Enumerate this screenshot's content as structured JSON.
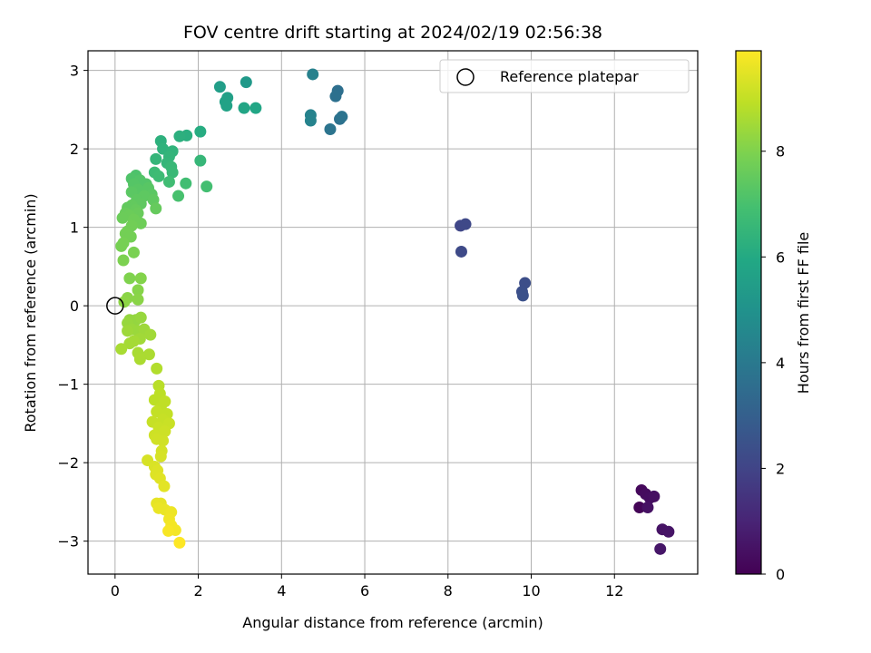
{
  "chart_data": {
    "type": "scatter",
    "title": "FOV centre drift starting at 2024/02/19 02:56:38",
    "xlabel": "Angular distance from reference (arcmin)",
    "ylabel": "Rotation from reference (arcmin)",
    "xlim": [
      -0.65,
      14.0
    ],
    "ylim": [
      -3.42,
      3.25
    ],
    "xticks": [
      0,
      2,
      4,
      6,
      8,
      10,
      12
    ],
    "yticks": [
      -3,
      -2,
      -1,
      0,
      1,
      2,
      3
    ],
    "grid": true,
    "legend": {
      "placement": "upper-right",
      "entries": [
        {
          "label": "Reference platepar",
          "marker": "open-circle",
          "x": 0,
          "y": 0
        }
      ]
    },
    "colorbar": {
      "label": "Hours from first FF file",
      "colormap": "viridis",
      "range": [
        0,
        9.9
      ],
      "ticks": [
        0,
        2,
        4,
        6,
        8
      ]
    },
    "points": [
      {
        "x": 12.6,
        "y": -2.57,
        "t": 0.1
      },
      {
        "x": 12.65,
        "y": -2.35,
        "t": 0.2
      },
      {
        "x": 12.75,
        "y": -2.4,
        "t": 0.3
      },
      {
        "x": 12.85,
        "y": -2.45,
        "t": 0.35
      },
      {
        "x": 12.95,
        "y": -2.43,
        "t": 0.4
      },
      {
        "x": 12.8,
        "y": -2.57,
        "t": 0.45
      },
      {
        "x": 13.15,
        "y": -2.85,
        "t": 0.5
      },
      {
        "x": 13.3,
        "y": -2.88,
        "t": 0.55
      },
      {
        "x": 13.1,
        "y": -3.1,
        "t": 0.6
      },
      {
        "x": 8.3,
        "y": 1.02,
        "t": 2.1
      },
      {
        "x": 8.42,
        "y": 1.04,
        "t": 2.15
      },
      {
        "x": 8.32,
        "y": 0.69,
        "t": 2.2
      },
      {
        "x": 9.85,
        "y": 0.29,
        "t": 2.35
      },
      {
        "x": 9.78,
        "y": 0.18,
        "t": 2.4
      },
      {
        "x": 9.8,
        "y": 0.13,
        "t": 2.45
      },
      {
        "x": 5.35,
        "y": 2.74,
        "t": 3.6
      },
      {
        "x": 5.3,
        "y": 2.67,
        "t": 3.65
      },
      {
        "x": 5.4,
        "y": 2.38,
        "t": 3.7
      },
      {
        "x": 5.45,
        "y": 2.41,
        "t": 3.75
      },
      {
        "x": 5.17,
        "y": 2.25,
        "t": 3.8
      },
      {
        "x": 4.75,
        "y": 2.95,
        "t": 4.3
      },
      {
        "x": 4.7,
        "y": 2.43,
        "t": 4.35
      },
      {
        "x": 4.7,
        "y": 2.36,
        "t": 4.4
      },
      {
        "x": 3.15,
        "y": 2.85,
        "t": 5.3
      },
      {
        "x": 2.52,
        "y": 2.79,
        "t": 5.5
      },
      {
        "x": 2.7,
        "y": 2.65,
        "t": 5.6
      },
      {
        "x": 2.65,
        "y": 2.6,
        "t": 5.65
      },
      {
        "x": 2.68,
        "y": 2.55,
        "t": 5.7
      },
      {
        "x": 3.1,
        "y": 2.52,
        "t": 5.8
      },
      {
        "x": 3.38,
        "y": 2.52,
        "t": 5.85
      },
      {
        "x": 2.05,
        "y": 2.22,
        "t": 6.1
      },
      {
        "x": 1.72,
        "y": 2.17,
        "t": 6.2
      },
      {
        "x": 1.55,
        "y": 2.16,
        "t": 6.25
      },
      {
        "x": 1.1,
        "y": 2.1,
        "t": 6.3
      },
      {
        "x": 1.15,
        "y": 2.0,
        "t": 6.35
      },
      {
        "x": 1.38,
        "y": 1.97,
        "t": 6.4
      },
      {
        "x": 1.3,
        "y": 1.9,
        "t": 6.45
      },
      {
        "x": 1.25,
        "y": 1.82,
        "t": 6.5
      },
      {
        "x": 0.98,
        "y": 1.87,
        "t": 6.5
      },
      {
        "x": 2.05,
        "y": 1.85,
        "t": 6.55
      },
      {
        "x": 1.35,
        "y": 1.77,
        "t": 6.6
      },
      {
        "x": 1.38,
        "y": 1.7,
        "t": 6.65
      },
      {
        "x": 0.95,
        "y": 1.7,
        "t": 6.7
      },
      {
        "x": 1.05,
        "y": 1.65,
        "t": 6.75
      },
      {
        "x": 1.3,
        "y": 1.58,
        "t": 6.8
      },
      {
        "x": 1.7,
        "y": 1.56,
        "t": 6.85
      },
      {
        "x": 2.2,
        "y": 1.52,
        "t": 6.9
      },
      {
        "x": 1.52,
        "y": 1.4,
        "t": 7.0
      },
      {
        "x": 0.5,
        "y": 1.66,
        "t": 7.1
      },
      {
        "x": 0.4,
        "y": 1.62,
        "t": 7.15
      },
      {
        "x": 0.6,
        "y": 1.6,
        "t": 7.2
      },
      {
        "x": 0.75,
        "y": 1.55,
        "t": 7.2
      },
      {
        "x": 0.45,
        "y": 1.55,
        "t": 7.25
      },
      {
        "x": 0.8,
        "y": 1.5,
        "t": 7.3
      },
      {
        "x": 0.55,
        "y": 1.48,
        "t": 7.3
      },
      {
        "x": 0.4,
        "y": 1.45,
        "t": 7.35
      },
      {
        "x": 0.88,
        "y": 1.42,
        "t": 7.35
      },
      {
        "x": 0.7,
        "y": 1.4,
        "t": 7.4
      },
      {
        "x": 0.52,
        "y": 1.35,
        "t": 7.4
      },
      {
        "x": 0.92,
        "y": 1.35,
        "t": 7.45
      },
      {
        "x": 0.62,
        "y": 1.3,
        "t": 7.45
      },
      {
        "x": 0.4,
        "y": 1.28,
        "t": 7.5
      },
      {
        "x": 0.3,
        "y": 1.25,
        "t": 7.5
      },
      {
        "x": 0.5,
        "y": 1.22,
        "t": 7.55
      },
      {
        "x": 0.98,
        "y": 1.24,
        "t": 7.55
      },
      {
        "x": 0.55,
        "y": 1.18,
        "t": 7.6
      },
      {
        "x": 0.25,
        "y": 1.18,
        "t": 7.6
      },
      {
        "x": 0.35,
        "y": 1.15,
        "t": 7.65
      },
      {
        "x": 0.18,
        "y": 1.12,
        "t": 7.65
      },
      {
        "x": 0.45,
        "y": 1.1,
        "t": 7.7
      },
      {
        "x": 0.62,
        "y": 1.05,
        "t": 7.7
      },
      {
        "x": 0.4,
        "y": 1.02,
        "t": 7.75
      },
      {
        "x": 0.3,
        "y": 0.95,
        "t": 7.75
      },
      {
        "x": 0.25,
        "y": 0.92,
        "t": 7.8
      },
      {
        "x": 0.38,
        "y": 0.88,
        "t": 7.8
      },
      {
        "x": 0.2,
        "y": 0.8,
        "t": 7.85
      },
      {
        "x": 0.15,
        "y": 0.76,
        "t": 7.85
      },
      {
        "x": 0.45,
        "y": 0.68,
        "t": 7.9
      },
      {
        "x": 0.2,
        "y": 0.58,
        "t": 7.95
      },
      {
        "x": 0.35,
        "y": 0.35,
        "t": 8.0
      },
      {
        "x": 0.62,
        "y": 0.35,
        "t": 8.05
      },
      {
        "x": 0.55,
        "y": 0.2,
        "t": 8.1
      },
      {
        "x": 0.3,
        "y": 0.1,
        "t": 8.15
      },
      {
        "x": 0.55,
        "y": 0.08,
        "t": 8.15
      },
      {
        "x": 0.22,
        "y": 0.05,
        "t": 8.2
      },
      {
        "x": 0.35,
        "y": -0.18,
        "t": 8.3
      },
      {
        "x": 0.5,
        "y": -0.18,
        "t": 8.3
      },
      {
        "x": 0.62,
        "y": -0.15,
        "t": 8.35
      },
      {
        "x": 0.3,
        "y": -0.22,
        "t": 8.35
      },
      {
        "x": 0.4,
        "y": -0.3,
        "t": 8.4
      },
      {
        "x": 0.55,
        "y": -0.32,
        "t": 8.4
      },
      {
        "x": 0.7,
        "y": -0.3,
        "t": 8.45
      },
      {
        "x": 0.3,
        "y": -0.32,
        "t": 8.45
      },
      {
        "x": 0.85,
        "y": -0.37,
        "t": 8.5
      },
      {
        "x": 0.6,
        "y": -0.42,
        "t": 8.5
      },
      {
        "x": 0.45,
        "y": -0.45,
        "t": 8.55
      },
      {
        "x": 0.35,
        "y": -0.48,
        "t": 8.55
      },
      {
        "x": 0.15,
        "y": -0.55,
        "t": 8.6
      },
      {
        "x": 0.55,
        "y": -0.6,
        "t": 8.6
      },
      {
        "x": 0.82,
        "y": -0.62,
        "t": 8.65
      },
      {
        "x": 0.6,
        "y": -0.68,
        "t": 8.65
      },
      {
        "x": 1.0,
        "y": -0.8,
        "t": 8.75
      },
      {
        "x": 1.05,
        "y": -1.02,
        "t": 8.85
      },
      {
        "x": 1.08,
        "y": -1.12,
        "t": 8.9
      },
      {
        "x": 0.95,
        "y": -1.2,
        "t": 8.9
      },
      {
        "x": 1.2,
        "y": -1.22,
        "t": 8.95
      },
      {
        "x": 1.1,
        "y": -1.3,
        "t": 8.95
      },
      {
        "x": 1.0,
        "y": -1.35,
        "t": 9.0
      },
      {
        "x": 1.25,
        "y": -1.38,
        "t": 9.0
      },
      {
        "x": 1.15,
        "y": -1.45,
        "t": 9.05
      },
      {
        "x": 0.9,
        "y": -1.48,
        "t": 9.05
      },
      {
        "x": 1.3,
        "y": -1.5,
        "t": 9.1
      },
      {
        "x": 1.05,
        "y": -1.55,
        "t": 9.1
      },
      {
        "x": 1.2,
        "y": -1.6,
        "t": 9.15
      },
      {
        "x": 0.95,
        "y": -1.65,
        "t": 9.15
      },
      {
        "x": 1.0,
        "y": -1.7,
        "t": 9.2
      },
      {
        "x": 1.15,
        "y": -1.72,
        "t": 9.2
      },
      {
        "x": 1.12,
        "y": -1.85,
        "t": 9.25
      },
      {
        "x": 1.1,
        "y": -1.92,
        "t": 9.3
      },
      {
        "x": 0.78,
        "y": -1.97,
        "t": 9.3
      },
      {
        "x": 0.95,
        "y": -2.05,
        "t": 9.35
      },
      {
        "x": 1.02,
        "y": -2.1,
        "t": 9.4
      },
      {
        "x": 0.98,
        "y": -2.15,
        "t": 9.4
      },
      {
        "x": 1.08,
        "y": -2.2,
        "t": 9.45
      },
      {
        "x": 1.18,
        "y": -2.3,
        "t": 9.5
      },
      {
        "x": 1.0,
        "y": -2.52,
        "t": 9.55
      },
      {
        "x": 1.1,
        "y": -2.52,
        "t": 9.55
      },
      {
        "x": 1.05,
        "y": -2.58,
        "t": 9.6
      },
      {
        "x": 1.2,
        "y": -2.6,
        "t": 9.6
      },
      {
        "x": 1.35,
        "y": -2.63,
        "t": 9.65
      },
      {
        "x": 1.3,
        "y": -2.72,
        "t": 9.7
      },
      {
        "x": 1.35,
        "y": -2.8,
        "t": 9.75
      },
      {
        "x": 1.45,
        "y": -2.86,
        "t": 9.75
      },
      {
        "x": 1.28,
        "y": -2.87,
        "t": 9.8
      },
      {
        "x": 1.55,
        "y": -3.02,
        "t": 9.9
      }
    ]
  }
}
